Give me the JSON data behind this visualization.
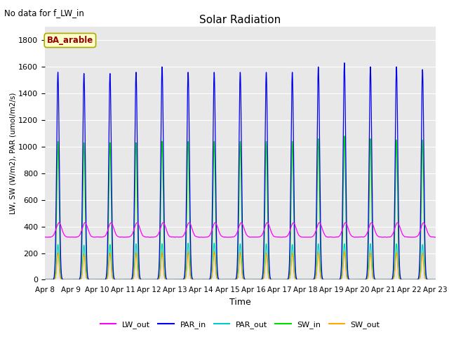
{
  "title": "Solar Radiation",
  "subtitle": "No data for f_LW_in",
  "xlabel": "Time",
  "ylabel": "LW, SW (W/m2), PAR (umol/m2/s)",
  "legend_label": "BA_arable",
  "ylim": [
    0,
    1900
  ],
  "yticks": [
    0,
    200,
    400,
    600,
    800,
    1000,
    1200,
    1400,
    1600,
    1800
  ],
  "xtick_labels": [
    "Apr 8",
    "Apr 9",
    "Apr 10",
    "Apr 11",
    "Apr 12",
    "Apr 13",
    "Apr 14",
    "Apr 15",
    "Apr 16",
    "Apr 17",
    "Apr 18",
    "Apr 19",
    "Apr 20",
    "Apr 21",
    "Apr 22",
    "Apr 23"
  ],
  "colors": {
    "LW_out": "#ff00ff",
    "PAR_in": "#0000ee",
    "PAR_out": "#00cccc",
    "SW_in": "#00dd00",
    "SW_out": "#ffaa00"
  },
  "bg_color": "#e8e8e8",
  "grid_color": "#ffffff",
  "legend_box_facecolor": "#ffffcc",
  "legend_box_edgecolor": "#aaaa00",
  "legend_text_color": "#990000",
  "PAR_in_peaks": [
    1560,
    1550,
    1550,
    1560,
    1600,
    1560,
    1560,
    1560,
    1560,
    1560,
    1600,
    1630,
    1600,
    1600,
    1580
  ],
  "SW_in_peaks": [
    1040,
    1030,
    1030,
    1030,
    1040,
    1040,
    1040,
    1040,
    1040,
    1040,
    1060,
    1080,
    1060,
    1050,
    1050
  ],
  "PAR_out_peaks": [
    265,
    260,
    265,
    270,
    270,
    275,
    275,
    270,
    270,
    265,
    270,
    270,
    270,
    270,
    265
  ],
  "SW_out_peaks": [
    200,
    195,
    200,
    205,
    205,
    210,
    210,
    205,
    200,
    198,
    205,
    210,
    205,
    205,
    200
  ],
  "LW_base": 320,
  "LW_peak_add": 110
}
